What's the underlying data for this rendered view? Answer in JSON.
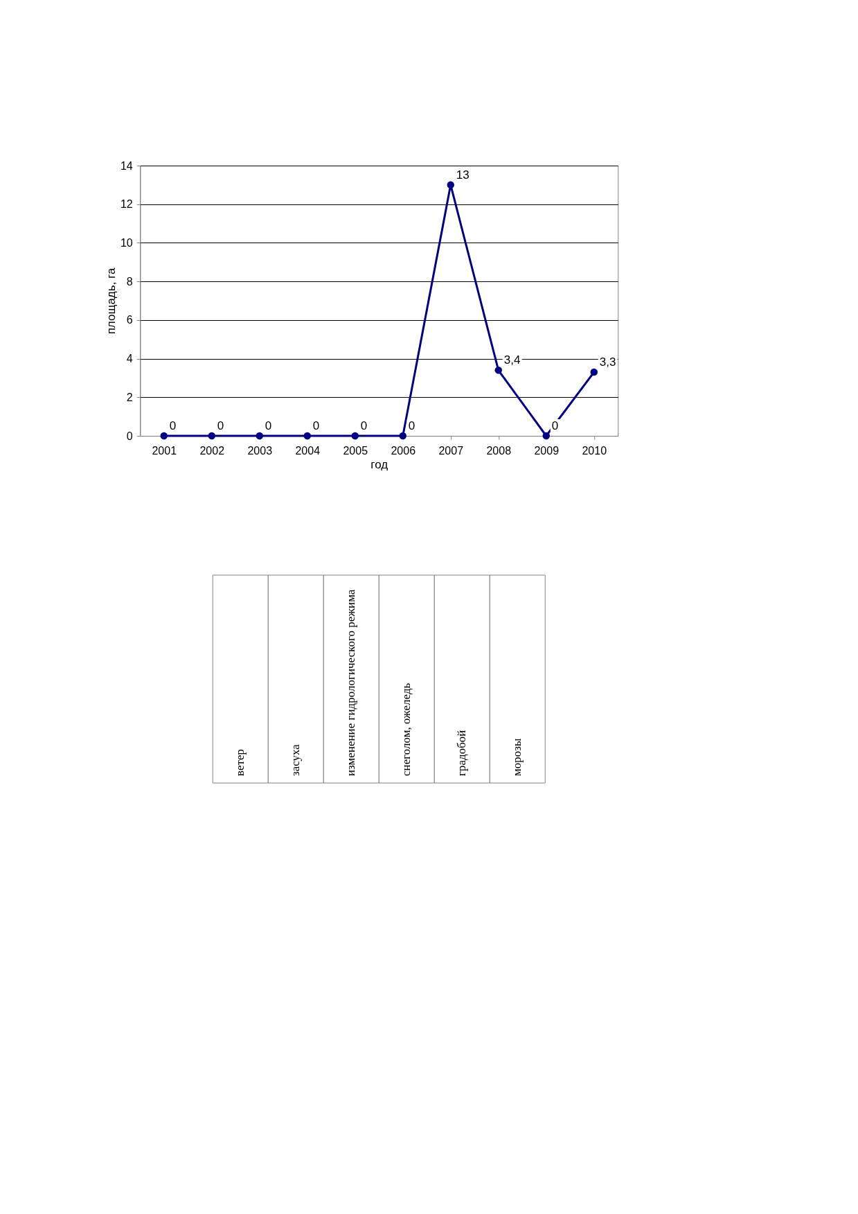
{
  "chart_data": [
    {
      "type": "line",
      "xlabel": "год",
      "ylabel": "площадь, га",
      "categories": [
        "2001",
        "2002",
        "2003",
        "2004",
        "2005",
        "2006",
        "2007",
        "2008",
        "2009",
        "2010"
      ],
      "series": [
        {
          "color": "#000080",
          "values": [
            0,
            0,
            0,
            0,
            0,
            0,
            13,
            3.4,
            0,
            3.3
          ],
          "value_labels": [
            "0",
            "0",
            "0",
            "0",
            "0",
            "0",
            "13",
            "3,4",
            "0",
            "3,3"
          ]
        }
      ],
      "ylim": [
        0,
        14
      ],
      "yticks": [
        0,
        2,
        4,
        6,
        8,
        10,
        12,
        14
      ],
      "grid": "y",
      "marker": "circle",
      "line_style": "solid"
    },
    {
      "type": "other",
      "annotations": [
        "ветер",
        "засуха",
        "изменение гидрологического режима",
        "снеголом, ожеледь",
        "градобой",
        "морозы"
      ]
    }
  ]
}
